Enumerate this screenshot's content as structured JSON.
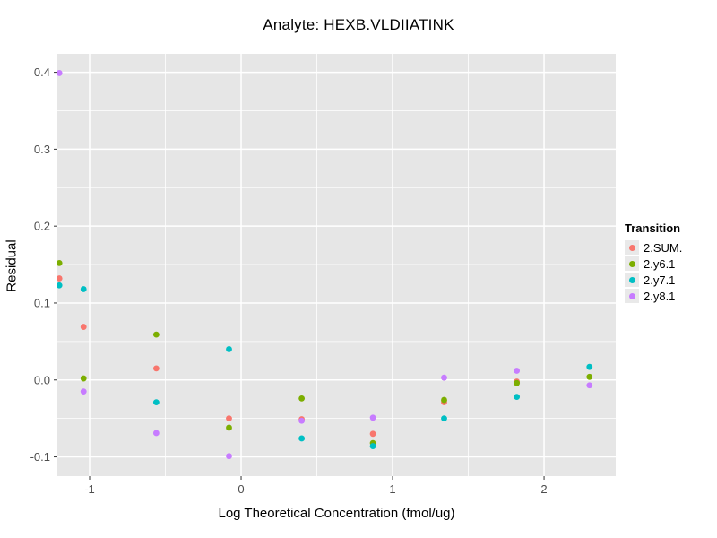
{
  "title": "Analyte: HEXB.VLDIIATINK",
  "axes": {
    "x": {
      "label": "Log Theoretical Concentration (fmol/ug)",
      "tick_values": [
        -1,
        0,
        1,
        2
      ],
      "tick_labels": [
        "-1",
        "0",
        "1",
        "2"
      ],
      "minor_tick_values": [
        -0.5,
        0.5,
        1.5
      ]
    },
    "y": {
      "label": "Residual",
      "tick_values": [
        -0.1,
        0.0,
        0.1,
        0.2,
        0.3,
        0.4
      ],
      "tick_labels": [
        "-0.1",
        "0.0",
        "0.1",
        "0.2",
        "0.3",
        "0.4"
      ],
      "minor_tick_values": [
        -0.05,
        0.05,
        0.15,
        0.25,
        0.35
      ]
    }
  },
  "legend": {
    "title": "Transition",
    "items": [
      {
        "label": "2.SUM.",
        "color": "#F8766D"
      },
      {
        "label": "2.y6.1",
        "color": "#7CAE00"
      },
      {
        "label": "2.y7.1",
        "color": "#00BFC4"
      },
      {
        "label": "2.y8.1",
        "color": "#C77CFF"
      }
    ]
  },
  "chart_data": {
    "type": "scatter",
    "title": "Analyte: HEXB.VLDIIATINK",
    "xlabel": "Log Theoretical Concentration (fmol/ug)",
    "ylabel": "Residual",
    "x": [
      -1.2,
      -1.04,
      -0.56,
      -0.08,
      0.4,
      0.87,
      1.34,
      1.82,
      2.3
    ],
    "series": [
      {
        "name": "2.SUM.",
        "color": "#F8766D",
        "values": [
          0.132,
          0.069,
          0.015,
          -0.05,
          -0.051,
          -0.07,
          -0.029,
          -0.002,
          null
        ]
      },
      {
        "name": "2.y6.1",
        "color": "#7CAE00",
        "values": [
          0.152,
          0.002,
          0.059,
          -0.062,
          -0.024,
          -0.082,
          -0.026,
          -0.004,
          0.004
        ]
      },
      {
        "name": "2.y7.1",
        "color": "#00BFC4",
        "values": [
          0.123,
          0.118,
          -0.029,
          0.04,
          -0.076,
          -0.086,
          -0.05,
          -0.022,
          0.017
        ]
      },
      {
        "name": "2.y8.1",
        "color": "#C77CFF",
        "values": [
          0.399,
          -0.015,
          -0.069,
          -0.099,
          -0.053,
          -0.049,
          0.003,
          0.012,
          -0.007
        ]
      }
    ],
    "xlim": [
      -1.213,
      2.473
    ],
    "ylim": [
      -0.125,
      0.424
    ],
    "grid": true,
    "legend_position": "right",
    "point_radius": 3.4,
    "panel_bg": "#E6E6E6",
    "grid_major_color": "#FFFFFF",
    "grid_minor_color": "#FFFFFF",
    "tick_color": "#333333",
    "tick_label_color": "#4D4D4D"
  }
}
